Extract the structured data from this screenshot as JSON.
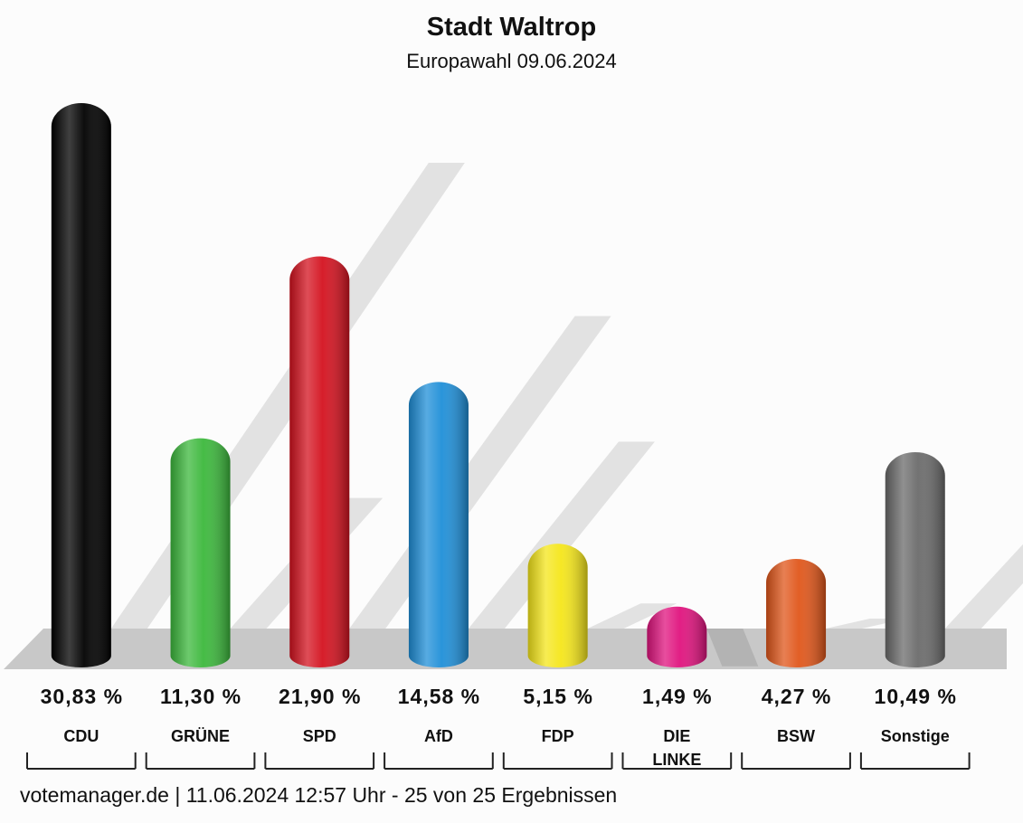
{
  "chart_data": {
    "type": "bar",
    "title": "Stadt Waltrop",
    "subtitle": "Europawahl 09.06.2024",
    "categories": [
      "CDU",
      "GRÜNE",
      "SPD",
      "AfD",
      "FDP",
      "DIE LINKE",
      "BSW",
      "Sonstige"
    ],
    "values": [
      30.83,
      11.3,
      21.9,
      14.58,
      5.15,
      1.49,
      4.27,
      10.49
    ],
    "value_labels": [
      "30,83 %",
      "11,30 %",
      "21,90 %",
      "14,58 %",
      "5,15 %",
      "1,49 %",
      "4,27 %",
      "10,49 %"
    ],
    "colors": [
      "#000000",
      "#3cb83c",
      "#d4121f",
      "#1f8fd8",
      "#f5e61a",
      "#e0137e",
      "#e0561a",
      "#6b6b6b"
    ],
    "footer": "votemanager.de | 11.06.2024 12:57 Uhr - 25 von 25 Ergebnissen"
  }
}
